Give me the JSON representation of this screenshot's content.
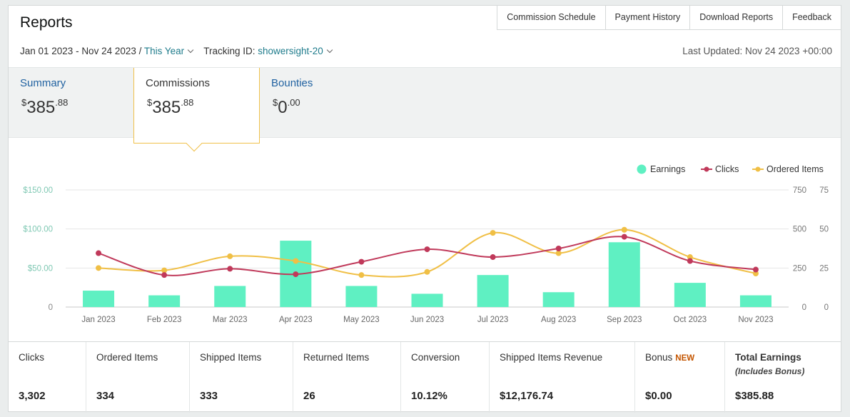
{
  "page": {
    "title": "Reports"
  },
  "top_tabs": [
    {
      "label": "Commission Schedule"
    },
    {
      "label": "Payment History"
    },
    {
      "label": "Download Reports"
    },
    {
      "label": "Feedback"
    }
  ],
  "filters": {
    "date_range": "Jan 01 2023 - Nov 24 2023 /",
    "period": "This Year",
    "tracking_label": "Tracking ID:",
    "tracking_id": "showersight-20"
  },
  "last_updated": "Last Updated: Nov 24 2023 +00:00",
  "summary_tabs": [
    {
      "label": "Summary",
      "currency": "$",
      "whole": "385",
      "fraction": ".88"
    },
    {
      "label": "Commissions",
      "currency": "$",
      "whole": "385",
      "fraction": ".88"
    },
    {
      "label": "Bounties",
      "currency": "$",
      "whole": "0",
      "fraction": ".00"
    }
  ],
  "chart_data": {
    "type": "bar",
    "categories": [
      "Jan 2023",
      "Feb 2023",
      "Mar 2023",
      "Apr 2023",
      "May 2023",
      "Jun 2023",
      "Jul 2023",
      "Aug 2023",
      "Sep 2023",
      "Oct 2023",
      "Nov 2023"
    ],
    "series": [
      {
        "name": "Earnings",
        "type": "bar",
        "axis": "left",
        "color": "#5ff0c2",
        "values": [
          21,
          15,
          27,
          85,
          27,
          17,
          41,
          19,
          83,
          31,
          15
        ]
      },
      {
        "name": "Clicks",
        "type": "line",
        "axis": "right1",
        "color": "#c0395a",
        "values": [
          345,
          205,
          245,
          210,
          290,
          370,
          320,
          375,
          450,
          295,
          240
        ]
      },
      {
        "name": "Ordered Items",
        "type": "line",
        "axis": "right2",
        "color": "#f0bf45",
        "values": [
          25,
          23.5,
          32.5,
          29.5,
          20.5,
          22.5,
          47.5,
          34.5,
          49.5,
          32,
          21.5
        ]
      }
    ],
    "left_axis": {
      "ticks": [
        "0",
        "$50.00",
        "$100.00",
        "$150.00"
      ],
      "range": [
        0,
        150
      ]
    },
    "right1_axis": {
      "ticks": [
        "0",
        "250",
        "500",
        "750"
      ],
      "range": [
        0,
        750
      ]
    },
    "right2_axis": {
      "ticks": [
        "0",
        "25",
        "50",
        "75"
      ],
      "range": [
        0,
        75
      ]
    },
    "legend": [
      "Earnings",
      "Clicks",
      "Ordered Items"
    ],
    "legend_position": "top-right",
    "grid": true
  },
  "stats": [
    {
      "label": "Clicks",
      "value": "3,302"
    },
    {
      "label": "Ordered Items",
      "value": "334"
    },
    {
      "label": "Shipped Items",
      "value": "333"
    },
    {
      "label": "Returned Items",
      "value": "26"
    },
    {
      "label": "Conversion",
      "value": "10.12%"
    },
    {
      "label": "Shipped Items Revenue",
      "value": "$12,176.74"
    },
    {
      "label": "Bonus",
      "badge": "NEW",
      "value": "$0.00"
    },
    {
      "label": "Total Earnings",
      "sublabel": "(Includes Bonus)",
      "value": "$385.88"
    }
  ],
  "colors": {
    "accent_link": "#1f7c8c",
    "tab_link": "#2162a1",
    "active_border": "#f0c14b"
  }
}
